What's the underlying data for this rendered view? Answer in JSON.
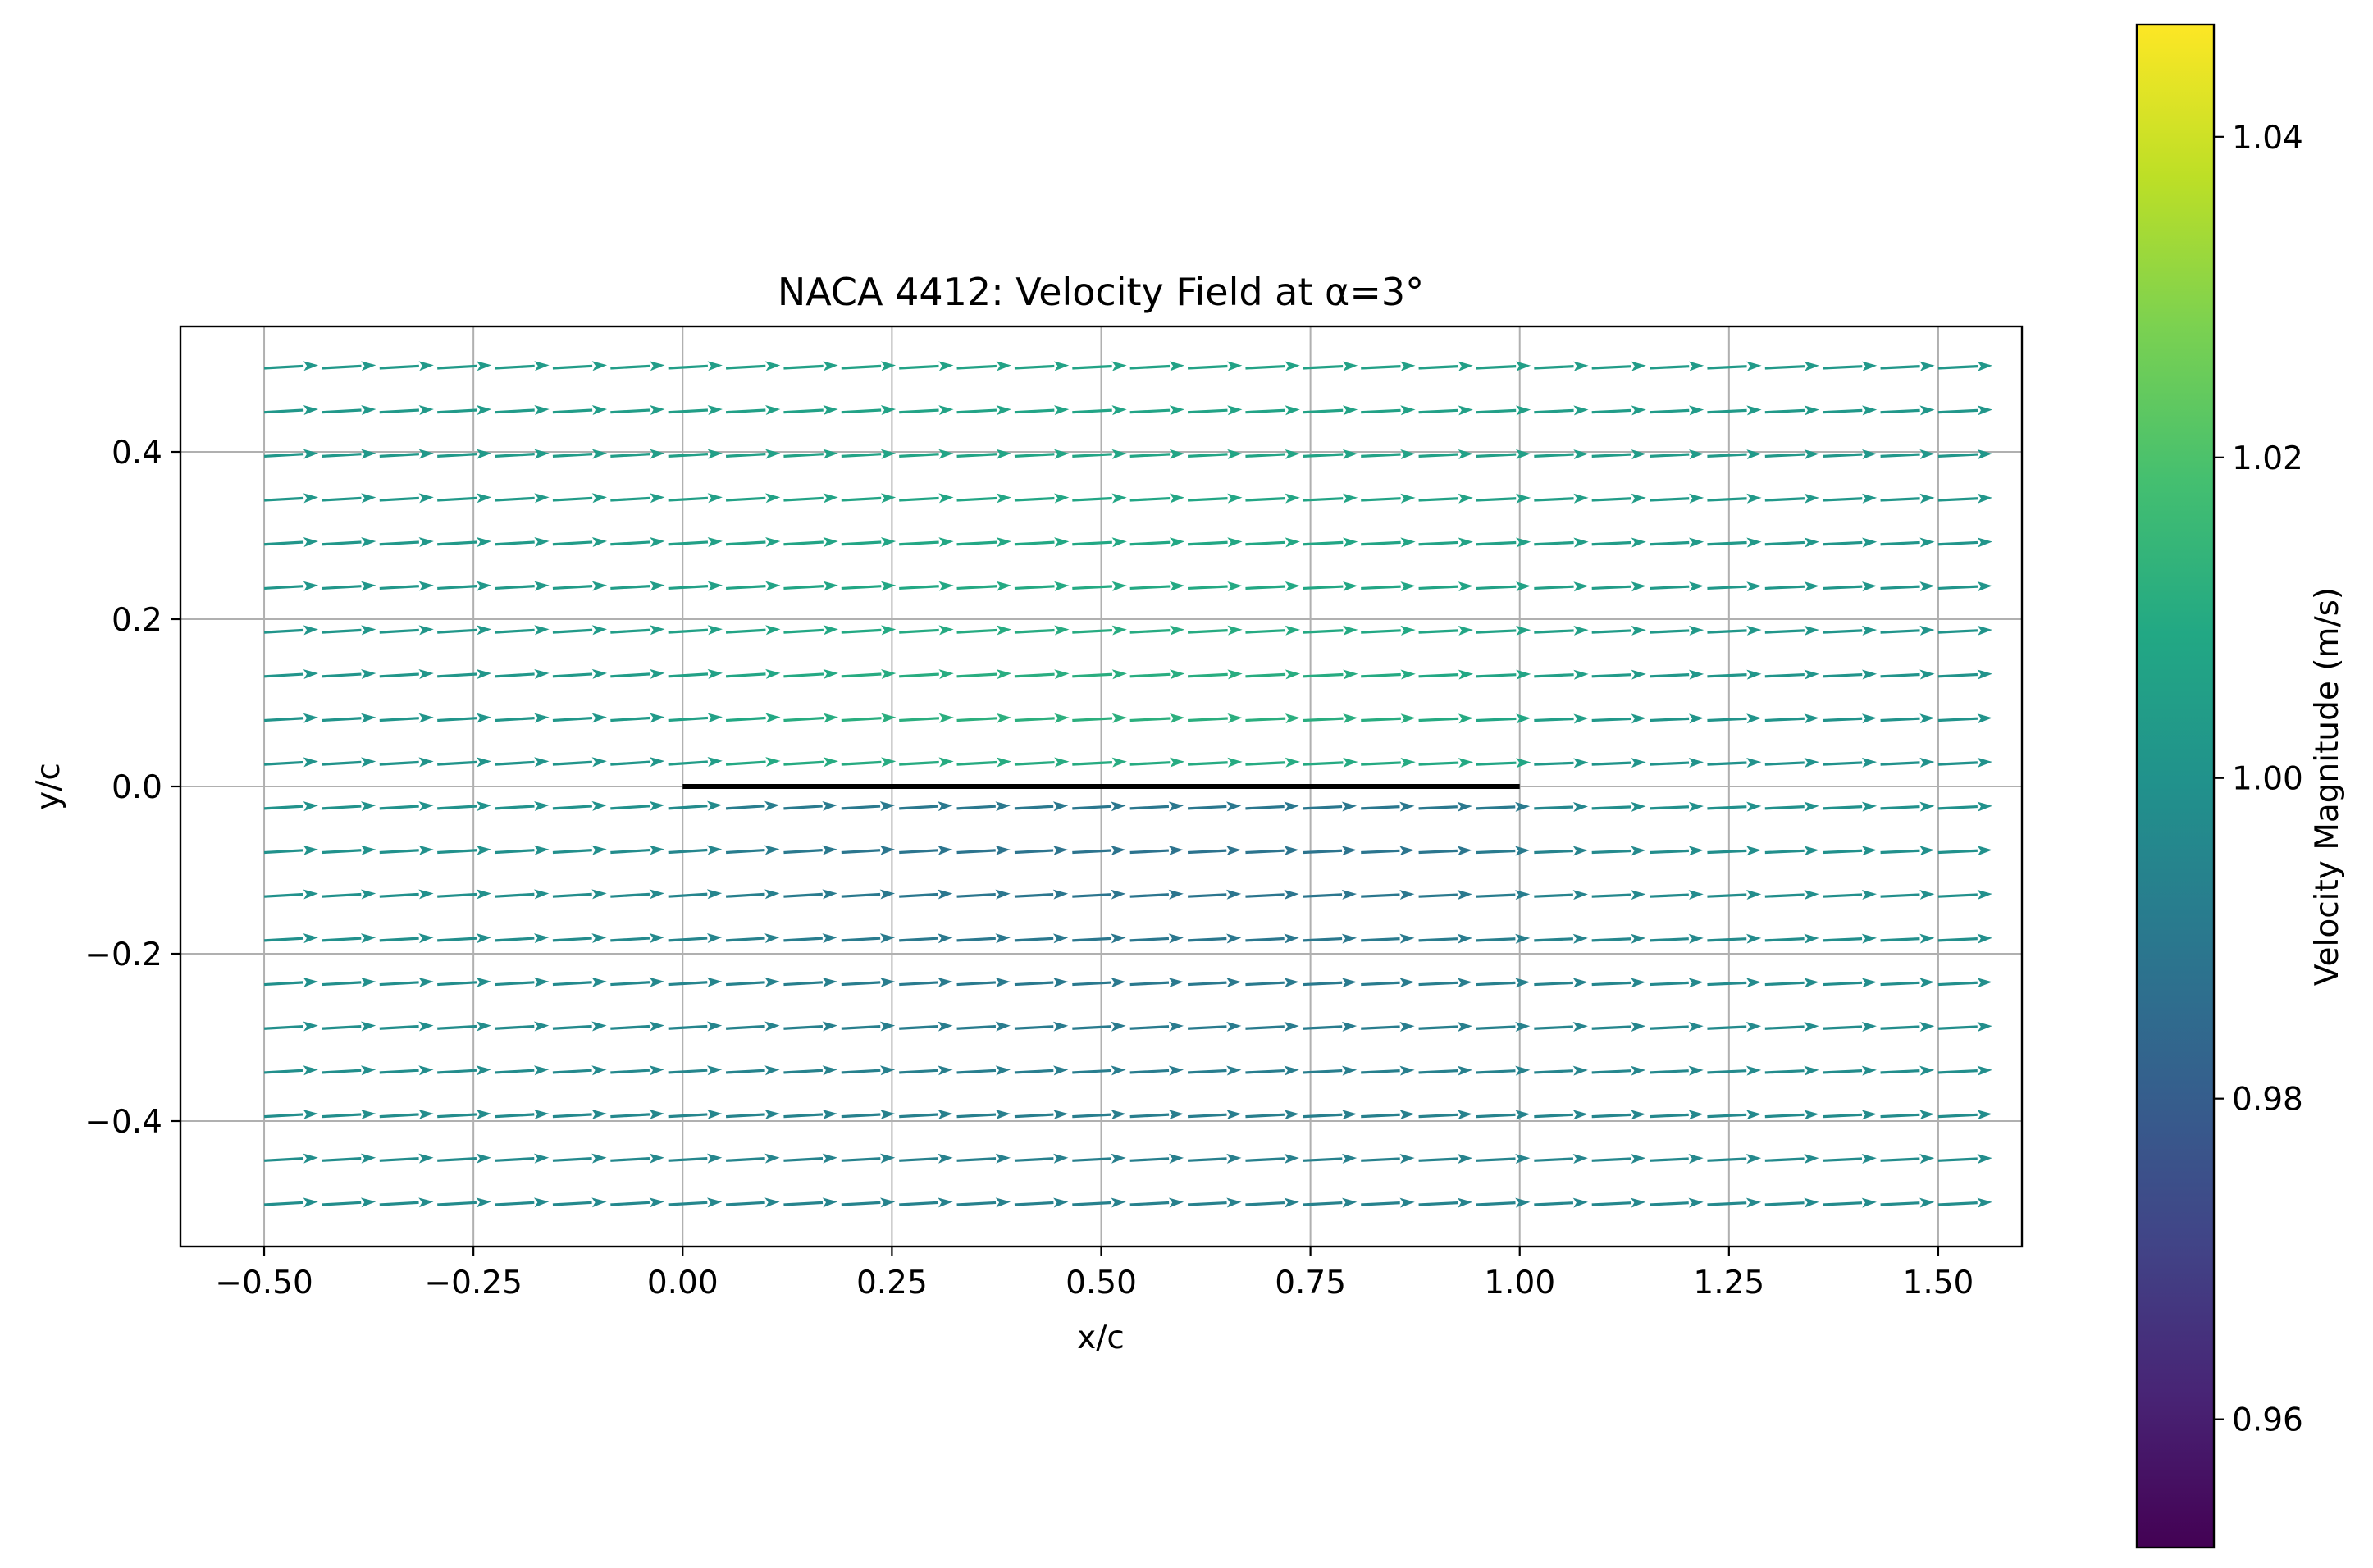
{
  "chart_data": {
    "type": "quiver",
    "title": "NACA 4412: Velocity Field at α=3°",
    "xlabel": "x/c",
    "ylabel": "y/c",
    "xlim": [
      -0.6,
      1.6
    ],
    "ylim": [
      -0.55,
      0.55
    ],
    "grid": true,
    "x_ticks": [
      -0.5,
      -0.25,
      0.0,
      0.25,
      0.5,
      0.75,
      1.0,
      1.25,
      1.5
    ],
    "x_tick_labels": [
      "−0.50",
      "−0.25",
      "0.00",
      "0.25",
      "0.50",
      "0.75",
      "1.00",
      "1.25",
      "1.50"
    ],
    "y_ticks": [
      0.4,
      0.2,
      0.0,
      -0.2,
      -0.4
    ],
    "y_tick_labels": [
      "0.4",
      "0.2",
      "0.0",
      "−0.2",
      "−0.4"
    ],
    "grid_x": {
      "start": -0.5,
      "stop": 1.5,
      "count": 30
    },
    "grid_y": {
      "start": -0.5,
      "stop": 0.5,
      "count": 20
    },
    "freestream_angle_deg": 3,
    "airfoil_chord_line": {
      "x": [
        0.0,
        1.0
      ],
      "y": [
        0.0,
        0.0
      ],
      "color": "#000000"
    },
    "velocity_magnitude_range": [
      0.952,
      1.047
    ],
    "colorbar": {
      "label": "Velocity Magnitude (m/s)",
      "colormap": "viridis",
      "vmin": 0.952,
      "vmax": 1.047,
      "ticks": [
        0.96,
        0.98,
        1.0,
        1.02,
        1.04
      ],
      "tick_labels": [
        "0.96",
        "0.98",
        "1.00",
        "1.02",
        "1.04"
      ]
    }
  }
}
